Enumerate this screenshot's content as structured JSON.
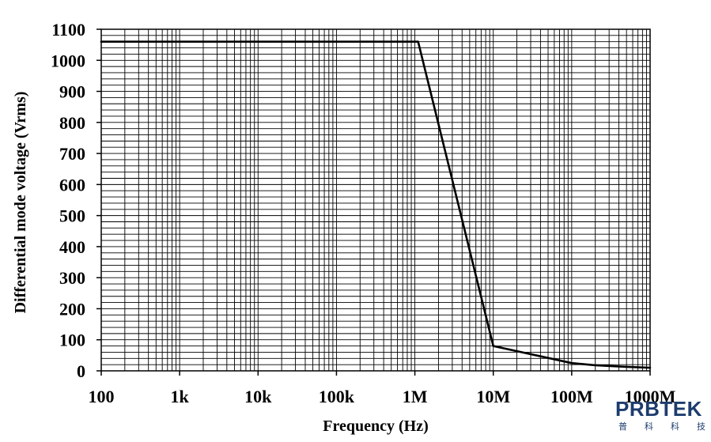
{
  "chart_data": {
    "type": "line",
    "xlabel": "Frequency (Hz)",
    "ylabel": "Differential mode voltage (Vrms)",
    "xscale": "log",
    "xlim": [
      100,
      1000000000
    ],
    "ylim": [
      0,
      1100
    ],
    "x_ticks": [
      100,
      1000,
      10000,
      100000,
      1000000,
      10000000,
      100000000,
      1000000000
    ],
    "x_tick_labels": [
      "100",
      "1k",
      "10k",
      "100k",
      "1M",
      "10M",
      "100M",
      "1000M"
    ],
    "y_ticks": [
      0,
      100,
      200,
      300,
      400,
      500,
      600,
      700,
      800,
      900,
      1000,
      1100
    ],
    "grid": true,
    "series": [
      {
        "x": [
          100,
          1100000,
          10000000,
          100000000,
          200000000,
          500000000,
          1000000000
        ],
        "y": [
          1060,
          1060,
          80,
          25,
          18,
          13,
          10
        ]
      }
    ]
  },
  "logo": {
    "text": "PRBTEK",
    "subtext": "普科科技",
    "color": "#1d3c6e"
  },
  "colors": {
    "line": "#000000",
    "grid": "#000000",
    "background": "#ffffff"
  }
}
